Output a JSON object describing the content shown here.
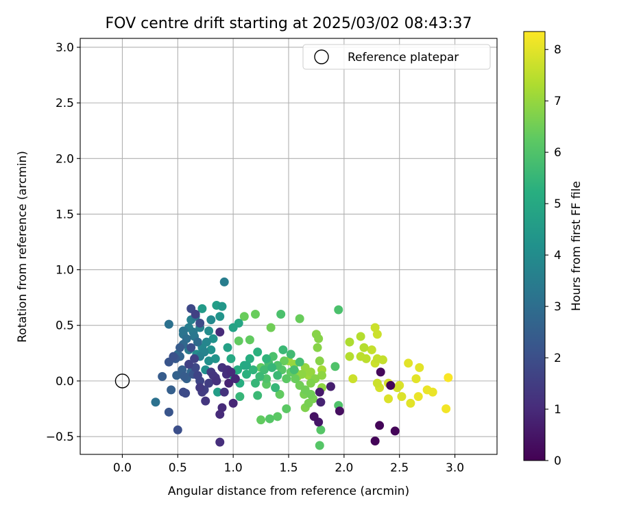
{
  "chart_data": {
    "type": "scatter",
    "title": "FOV centre drift starting at 2025/03/02 08:43:37",
    "xlabel": "Angular distance from reference (arcmin)",
    "ylabel": "Rotation from reference (arcmin)",
    "xlim": [
      -0.38,
      3.38
    ],
    "ylim": [
      -0.66,
      3.08
    ],
    "xticks": [
      "0.0",
      "0.5",
      "1.0",
      "1.5",
      "2.0",
      "2.5",
      "3.0"
    ],
    "yticks": [
      "−0.5",
      "0.0",
      "0.5",
      "1.0",
      "1.5",
      "2.0",
      "2.5",
      "3.0"
    ],
    "grid": true,
    "legend": {
      "placement": "top-right",
      "entries": [
        "Reference platepar"
      ]
    },
    "reference_point": {
      "x": 0.0,
      "y": 0.0
    },
    "colorbar": {
      "label": "Hours from first FF file",
      "range": [
        0,
        8.35
      ],
      "ticks": [
        "0",
        "1",
        "2",
        "3",
        "4",
        "5",
        "6",
        "7",
        "8"
      ],
      "colormap": "viridis"
    },
    "points": [
      {
        "x": 2.28,
        "y": -0.54,
        "t": 0.1
      },
      {
        "x": 2.32,
        "y": -0.4,
        "t": 0.1
      },
      {
        "x": 2.46,
        "y": -0.45,
        "t": 0.1
      },
      {
        "x": 2.42,
        "y": -0.04,
        "t": 0.1
      },
      {
        "x": 2.33,
        "y": 0.08,
        "t": 0.2
      },
      {
        "x": 1.96,
        "y": -0.27,
        "t": 0.3
      },
      {
        "x": 1.73,
        "y": -0.32,
        "t": 0.4
      },
      {
        "x": 1.77,
        "y": -0.37,
        "t": 0.5
      },
      {
        "x": 1.78,
        "y": -0.1,
        "t": 0.6
      },
      {
        "x": 1.88,
        "y": -0.05,
        "t": 0.7
      },
      {
        "x": 1.79,
        "y": -0.19,
        "t": 0.8
      },
      {
        "x": 0.88,
        "y": -0.55,
        "t": 1.1
      },
      {
        "x": 0.88,
        "y": -0.3,
        "t": 1.0
      },
      {
        "x": 0.9,
        "y": -0.24,
        "t": 1.0
      },
      {
        "x": 1.0,
        "y": -0.2,
        "t": 0.9
      },
      {
        "x": 0.92,
        "y": -0.1,
        "t": 1.2
      },
      {
        "x": 0.82,
        "y": 0.05,
        "t": 1.3
      },
      {
        "x": 0.85,
        "y": 0.0,
        "t": 1.2
      },
      {
        "x": 0.88,
        "y": 0.44,
        "t": 1.0
      },
      {
        "x": 0.95,
        "y": 0.1,
        "t": 1.1
      },
      {
        "x": 0.75,
        "y": -0.18,
        "t": 1.3
      },
      {
        "x": 0.7,
        "y": -0.06,
        "t": 1.4
      },
      {
        "x": 0.72,
        "y": -0.1,
        "t": 1.5
      },
      {
        "x": 0.6,
        "y": 0.15,
        "t": 1.6
      },
      {
        "x": 0.65,
        "y": 0.2,
        "t": 1.6
      },
      {
        "x": 0.68,
        "y": 0.05,
        "t": 1.7
      },
      {
        "x": 0.62,
        "y": 0.65,
        "t": 1.8
      },
      {
        "x": 0.55,
        "y": -0.1,
        "t": 1.9
      },
      {
        "x": 0.57,
        "y": -0.11,
        "t": 1.9
      },
      {
        "x": 0.5,
        "y": -0.44,
        "t": 2.0
      },
      {
        "x": 0.42,
        "y": -0.28,
        "t": 2.2
      },
      {
        "x": 0.42,
        "y": 0.17,
        "t": 2.2
      },
      {
        "x": 0.36,
        "y": 0.04,
        "t": 2.4
      },
      {
        "x": 0.44,
        "y": -0.08,
        "t": 2.5
      },
      {
        "x": 0.49,
        "y": 0.05,
        "t": 2.6
      },
      {
        "x": 0.52,
        "y": 0.22,
        "t": 2.7
      },
      {
        "x": 0.55,
        "y": 0.33,
        "t": 2.8
      },
      {
        "x": 0.5,
        "y": 0.24,
        "t": 2.9
      },
      {
        "x": 0.3,
        "y": -0.19,
        "t": 3.1
      },
      {
        "x": 0.42,
        "y": 0.51,
        "t": 3.1
      },
      {
        "x": 0.55,
        "y": 0.42,
        "t": 3.2
      },
      {
        "x": 0.65,
        "y": 0.4,
        "t": 3.3
      },
      {
        "x": 0.6,
        "y": 0.28,
        "t": 3.4
      },
      {
        "x": 0.92,
        "y": 0.89,
        "t": 3.5
      },
      {
        "x": 0.62,
        "y": 0.55,
        "t": 3.6
      },
      {
        "x": 0.7,
        "y": 0.48,
        "t": 3.6
      },
      {
        "x": 0.72,
        "y": 0.3,
        "t": 3.8
      },
      {
        "x": 0.8,
        "y": 0.55,
        "t": 3.9
      },
      {
        "x": 0.67,
        "y": 0.24,
        "t": 4.0
      },
      {
        "x": 0.75,
        "y": 0.1,
        "t": 4.1
      },
      {
        "x": 0.82,
        "y": 0.38,
        "t": 4.2
      },
      {
        "x": 0.88,
        "y": 0.58,
        "t": 4.3
      },
      {
        "x": 0.9,
        "y": 0.67,
        "t": 4.4
      },
      {
        "x": 0.72,
        "y": 0.65,
        "t": 4.5
      },
      {
        "x": 0.85,
        "y": 0.68,
        "t": 4.6
      },
      {
        "x": 0.95,
        "y": 0.3,
        "t": 4.7
      },
      {
        "x": 1.0,
        "y": 0.48,
        "t": 4.8
      },
      {
        "x": 1.05,
        "y": 0.52,
        "t": 4.9
      },
      {
        "x": 1.0,
        "y": 0.05,
        "t": 5.0
      },
      {
        "x": 1.1,
        "y": 0.14,
        "t": 5.1
      },
      {
        "x": 1.15,
        "y": 0.2,
        "t": 5.2
      },
      {
        "x": 1.22,
        "y": 0.26,
        "t": 5.3
      },
      {
        "x": 1.3,
        "y": 0.2,
        "t": 5.4
      },
      {
        "x": 1.35,
        "y": 0.12,
        "t": 5.5
      },
      {
        "x": 1.38,
        "y": -0.06,
        "t": 5.5
      },
      {
        "x": 1.4,
        "y": 0.05,
        "t": 5.6
      },
      {
        "x": 1.45,
        "y": 0.28,
        "t": 5.6
      },
      {
        "x": 1.52,
        "y": 0.24,
        "t": 5.7
      },
      {
        "x": 1.6,
        "y": 0.17,
        "t": 5.8
      },
      {
        "x": 1.55,
        "y": 0.1,
        "t": 5.8
      },
      {
        "x": 1.43,
        "y": 0.6,
        "t": 5.9
      },
      {
        "x": 1.95,
        "y": 0.64,
        "t": 5.9
      },
      {
        "x": 1.92,
        "y": 0.13,
        "t": 6.0
      },
      {
        "x": 1.95,
        "y": -0.22,
        "t": 6.0
      },
      {
        "x": 1.78,
        "y": -0.58,
        "t": 6.1
      },
      {
        "x": 1.79,
        "y": -0.44,
        "t": 6.1
      },
      {
        "x": 1.33,
        "y": -0.34,
        "t": 6.1
      },
      {
        "x": 1.25,
        "y": -0.35,
        "t": 6.3
      },
      {
        "x": 1.48,
        "y": -0.25,
        "t": 6.2
      },
      {
        "x": 1.4,
        "y": -0.32,
        "t": 6.2
      },
      {
        "x": 1.42,
        "y": -0.12,
        "t": 6.3
      },
      {
        "x": 1.6,
        "y": 0.56,
        "t": 6.4
      },
      {
        "x": 1.2,
        "y": 0.6,
        "t": 6.4
      },
      {
        "x": 1.1,
        "y": 0.58,
        "t": 6.4
      },
      {
        "x": 1.15,
        "y": 0.37,
        "t": 6.3
      },
      {
        "x": 1.05,
        "y": 0.36,
        "t": 6.3
      },
      {
        "x": 1.25,
        "y": 0.12,
        "t": 6.3
      },
      {
        "x": 1.3,
        "y": -0.03,
        "t": 6.2
      },
      {
        "x": 1.65,
        "y": -0.08,
        "t": 6.5
      },
      {
        "x": 1.7,
        "y": -0.12,
        "t": 6.5
      },
      {
        "x": 1.72,
        "y": -0.16,
        "t": 6.6
      },
      {
        "x": 1.68,
        "y": -0.2,
        "t": 6.6
      },
      {
        "x": 1.65,
        "y": -0.24,
        "t": 6.7
      },
      {
        "x": 1.75,
        "y": 0.42,
        "t": 6.8
      },
      {
        "x": 1.77,
        "y": 0.38,
        "t": 6.8
      },
      {
        "x": 1.76,
        "y": 0.3,
        "t": 6.8
      },
      {
        "x": 1.78,
        "y": 0.18,
        "t": 6.8
      },
      {
        "x": 1.8,
        "y": 0.05,
        "t": 6.9
      },
      {
        "x": 1.62,
        "y": 0.06,
        "t": 6.9
      },
      {
        "x": 1.65,
        "y": 0.12,
        "t": 7.0
      },
      {
        "x": 1.55,
        "y": 0.15,
        "t": 7.0
      },
      {
        "x": 1.5,
        "y": 0.18,
        "t": 7.1
      },
      {
        "x": 1.58,
        "y": 0.04,
        "t": 7.1
      },
      {
        "x": 1.68,
        "y": 0.05,
        "t": 7.1
      },
      {
        "x": 1.8,
        "y": 0.1,
        "t": 7.2
      },
      {
        "x": 2.05,
        "y": 0.35,
        "t": 7.3
      },
      {
        "x": 2.15,
        "y": 0.4,
        "t": 7.4
      },
      {
        "x": 2.18,
        "y": 0.3,
        "t": 7.4
      },
      {
        "x": 2.05,
        "y": 0.22,
        "t": 7.4
      },
      {
        "x": 2.15,
        "y": 0.22,
        "t": 7.5
      },
      {
        "x": 2.2,
        "y": 0.2,
        "t": 7.5
      },
      {
        "x": 2.25,
        "y": 0.28,
        "t": 7.6
      },
      {
        "x": 2.3,
        "y": 0.2,
        "t": 7.6
      },
      {
        "x": 2.35,
        "y": 0.19,
        "t": 7.6
      },
      {
        "x": 2.28,
        "y": 0.16,
        "t": 7.7
      },
      {
        "x": 2.3,
        "y": 0.42,
        "t": 7.7
      },
      {
        "x": 2.28,
        "y": 0.48,
        "t": 7.7
      },
      {
        "x": 2.08,
        "y": 0.02,
        "t": 7.7
      },
      {
        "x": 2.3,
        "y": -0.02,
        "t": 7.7
      },
      {
        "x": 2.32,
        "y": -0.06,
        "t": 7.8
      },
      {
        "x": 2.4,
        "y": -0.02,
        "t": 7.8
      },
      {
        "x": 2.48,
        "y": -0.06,
        "t": 7.8
      },
      {
        "x": 2.5,
        "y": -0.04,
        "t": 7.9
      },
      {
        "x": 2.4,
        "y": -0.16,
        "t": 7.9
      },
      {
        "x": 2.52,
        "y": -0.14,
        "t": 7.9
      },
      {
        "x": 2.6,
        "y": -0.2,
        "t": 8.0
      },
      {
        "x": 2.58,
        "y": 0.16,
        "t": 8.0
      },
      {
        "x": 2.68,
        "y": 0.12,
        "t": 8.0
      },
      {
        "x": 2.65,
        "y": 0.02,
        "t": 8.0
      },
      {
        "x": 2.75,
        "y": -0.08,
        "t": 8.1
      },
      {
        "x": 2.8,
        "y": -0.1,
        "t": 8.1
      },
      {
        "x": 2.67,
        "y": -0.14,
        "t": 8.1
      },
      {
        "x": 2.92,
        "y": -0.25,
        "t": 8.2
      },
      {
        "x": 2.94,
        "y": 0.03,
        "t": 8.3
      },
      {
        "x": 0.55,
        "y": 0.45,
        "t": 3.2
      },
      {
        "x": 0.58,
        "y": 0.38,
        "t": 3.0
      },
      {
        "x": 0.6,
        "y": 0.48,
        "t": 3.5
      },
      {
        "x": 0.64,
        "y": 0.44,
        "t": 3.4
      },
      {
        "x": 0.66,
        "y": 0.58,
        "t": 3.3
      },
      {
        "x": 0.68,
        "y": 0.35,
        "t": 2.9
      },
      {
        "x": 0.7,
        "y": 0.22,
        "t": 3.6
      },
      {
        "x": 0.74,
        "y": 0.26,
        "t": 3.7
      },
      {
        "x": 0.76,
        "y": 0.35,
        "t": 3.8
      },
      {
        "x": 0.78,
        "y": 0.45,
        "t": 4.0
      },
      {
        "x": 0.78,
        "y": 0.18,
        "t": 4.1
      },
      {
        "x": 0.8,
        "y": 0.28,
        "t": 4.2
      },
      {
        "x": 0.84,
        "y": 0.2,
        "t": 4.3
      },
      {
        "x": 0.86,
        "y": -0.1,
        "t": 4.6
      },
      {
        "x": 0.62,
        "y": 0.08,
        "t": 2.8
      },
      {
        "x": 0.58,
        "y": 0.02,
        "t": 2.6
      },
      {
        "x": 0.54,
        "y": 0.1,
        "t": 2.5
      },
      {
        "x": 0.52,
        "y": 0.3,
        "t": 2.4
      },
      {
        "x": 0.48,
        "y": 0.2,
        "t": 2.3
      },
      {
        "x": 0.46,
        "y": 0.22,
        "t": 2.1
      },
      {
        "x": 0.62,
        "y": 0.3,
        "t": 2.0
      },
      {
        "x": 0.66,
        "y": 0.12,
        "t": 1.8
      },
      {
        "x": 0.7,
        "y": 0.0,
        "t": 1.7
      },
      {
        "x": 0.74,
        "y": -0.08,
        "t": 1.6
      },
      {
        "x": 0.78,
        "y": -0.02,
        "t": 1.5
      },
      {
        "x": 0.8,
        "y": 0.08,
        "t": 1.4
      },
      {
        "x": 0.84,
        "y": 0.03,
        "t": 1.3
      },
      {
        "x": 0.9,
        "y": 0.12,
        "t": 1.2
      },
      {
        "x": 0.94,
        "y": 0.06,
        "t": 1.1
      },
      {
        "x": 0.98,
        "y": 0.08,
        "t": 1.0
      },
      {
        "x": 1.02,
        "y": 0.02,
        "t": 0.9
      },
      {
        "x": 0.96,
        "y": -0.02,
        "t": 0.8
      },
      {
        "x": 0.66,
        "y": 0.6,
        "t": 1.6
      },
      {
        "x": 0.7,
        "y": 0.52,
        "t": 1.9
      },
      {
        "x": 0.64,
        "y": 0.06,
        "t": 2.2
      },
      {
        "x": 0.56,
        "y": 0.04,
        "t": 2.4
      },
      {
        "x": 0.98,
        "y": 0.2,
        "t": 5.0
      },
      {
        "x": 1.04,
        "y": 0.1,
        "t": 5.1
      },
      {
        "x": 1.06,
        "y": -0.02,
        "t": 5.2
      },
      {
        "x": 1.12,
        "y": 0.06,
        "t": 5.3
      },
      {
        "x": 1.18,
        "y": 0.1,
        "t": 5.4
      },
      {
        "x": 1.2,
        "y": -0.02,
        "t": 5.5
      },
      {
        "x": 1.24,
        "y": 0.04,
        "t": 5.6
      },
      {
        "x": 1.28,
        "y": 0.1,
        "t": 5.7
      },
      {
        "x": 1.32,
        "y": 0.16,
        "t": 5.8
      },
      {
        "x": 1.36,
        "y": 0.22,
        "t": 5.9
      },
      {
        "x": 1.4,
        "y": 0.14,
        "t": 6.0
      },
      {
        "x": 1.44,
        "y": 0.1,
        "t": 6.1
      },
      {
        "x": 1.48,
        "y": 0.02,
        "t": 6.2
      },
      {
        "x": 1.52,
        "y": 0.08,
        "t": 6.3
      },
      {
        "x": 1.56,
        "y": 0.02,
        "t": 6.4
      },
      {
        "x": 1.6,
        "y": -0.04,
        "t": 6.5
      },
      {
        "x": 1.64,
        "y": -0.12,
        "t": 6.6
      },
      {
        "x": 1.7,
        "y": -0.02,
        "t": 6.7
      },
      {
        "x": 1.74,
        "y": 0.02,
        "t": 6.8
      },
      {
        "x": 1.8,
        "y": -0.06,
        "t": 6.9
      },
      {
        "x": 1.06,
        "y": -0.14,
        "t": 5.5
      },
      {
        "x": 1.12,
        "y": 0.14,
        "t": 5.0
      },
      {
        "x": 1.22,
        "y": -0.13,
        "t": 5.6
      },
      {
        "x": 1.3,
        "y": 0.02,
        "t": 6.0
      },
      {
        "x": 1.34,
        "y": 0.48,
        "t": 6.5
      },
      {
        "x": 1.46,
        "y": 0.18,
        "t": 6.4
      },
      {
        "x": 1.56,
        "y": 0.08,
        "t": 6.9
      },
      {
        "x": 1.7,
        "y": 0.08,
        "t": 7.0
      }
    ]
  }
}
